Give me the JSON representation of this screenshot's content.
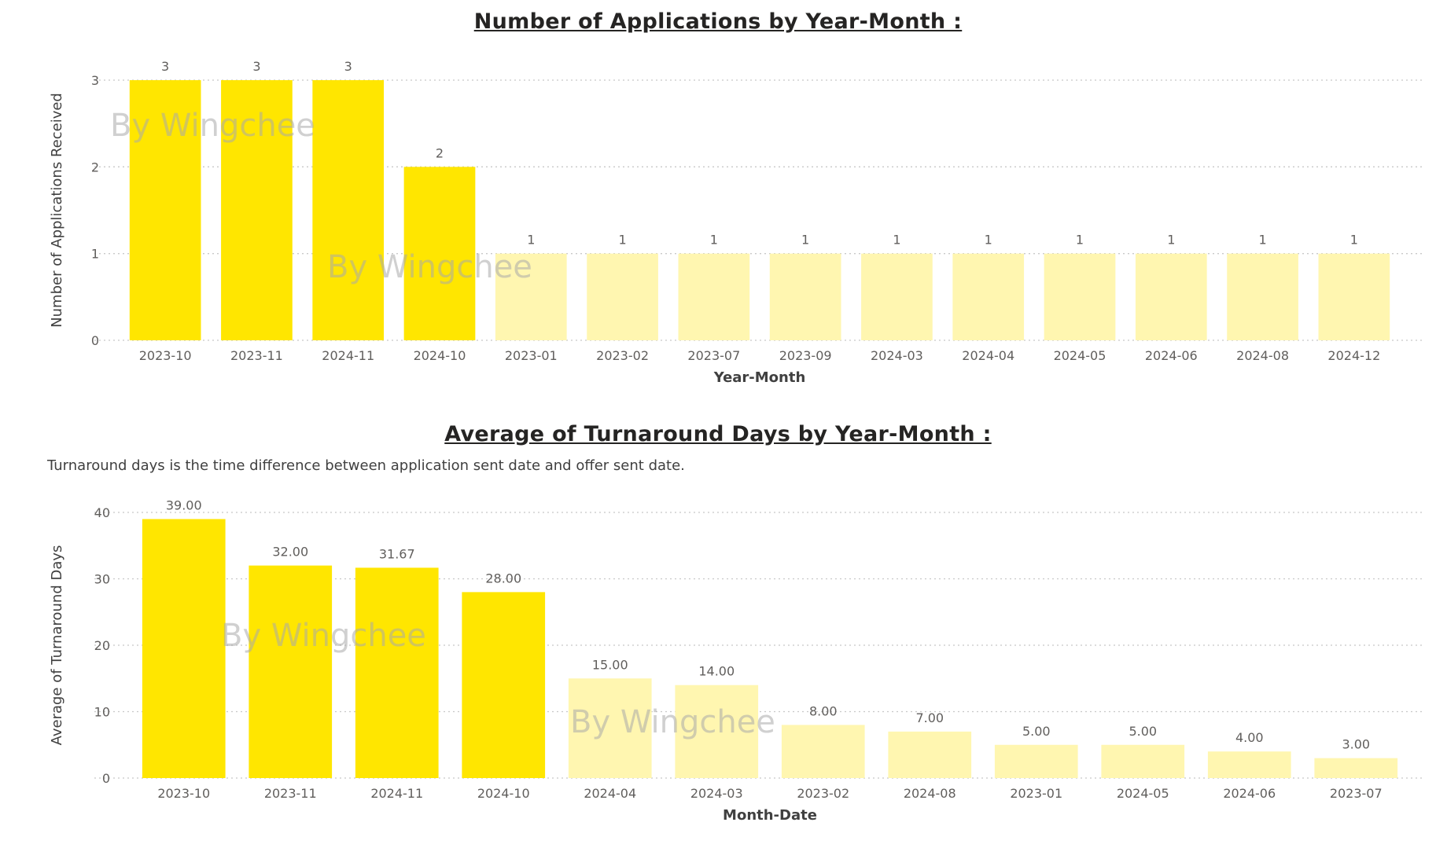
{
  "colors": {
    "highlight": "#FFE600",
    "muted": "#FFF6B0",
    "grid": "#C8C8C8",
    "text": "#605E5C"
  },
  "watermark_text": "By Wingchee",
  "chart_data": [
    {
      "type": "bar",
      "title": "Number of Applications by Year-Month :",
      "xlabel": "Year-Month",
      "ylabel": "Number of Applications Received",
      "ylim": [
        0,
        3
      ],
      "yticks": [
        "0",
        "1",
        "2",
        "3"
      ],
      "categories": [
        "2023-10",
        "2023-11",
        "2024-11",
        "2024-10",
        "2023-01",
        "2023-02",
        "2023-07",
        "2023-09",
        "2024-03",
        "2024-04",
        "2024-05",
        "2024-06",
        "2024-08",
        "2024-12"
      ],
      "values": [
        3,
        3,
        3,
        2,
        1,
        1,
        1,
        1,
        1,
        1,
        1,
        1,
        1,
        1
      ],
      "labels": [
        "3",
        "3",
        "3",
        "2",
        "1",
        "1",
        "1",
        "1",
        "1",
        "1",
        "1",
        "1",
        "1",
        "1"
      ],
      "highlighted": [
        true,
        true,
        true,
        true,
        false,
        false,
        false,
        false,
        false,
        false,
        false,
        false,
        false,
        false
      ],
      "grid": true
    },
    {
      "type": "bar",
      "title": "Average of Turnaround Days by Year-Month :",
      "subtitle": "Turnaround days is the time difference between application sent date and offer sent date.",
      "xlabel": "Month-Date",
      "ylabel": "Average of Turnaround Days",
      "ylim": [
        0,
        40
      ],
      "yticks": [
        "0",
        "10",
        "20",
        "30",
        "40"
      ],
      "categories": [
        "2023-10",
        "2023-11",
        "2024-11",
        "2024-10",
        "2024-04",
        "2024-03",
        "2023-02",
        "2024-08",
        "2023-01",
        "2024-05",
        "2024-06",
        "2023-07"
      ],
      "values": [
        39.0,
        32.0,
        31.67,
        28.0,
        15.0,
        14.0,
        8.0,
        7.0,
        5.0,
        5.0,
        4.0,
        3.0
      ],
      "labels": [
        "39.00",
        "32.00",
        "31.67",
        "28.00",
        "15.00",
        "14.00",
        "8.00",
        "7.00",
        "5.00",
        "5.00",
        "4.00",
        "3.00"
      ],
      "highlighted": [
        true,
        true,
        true,
        true,
        false,
        false,
        false,
        false,
        false,
        false,
        false,
        false
      ],
      "grid": true
    }
  ]
}
